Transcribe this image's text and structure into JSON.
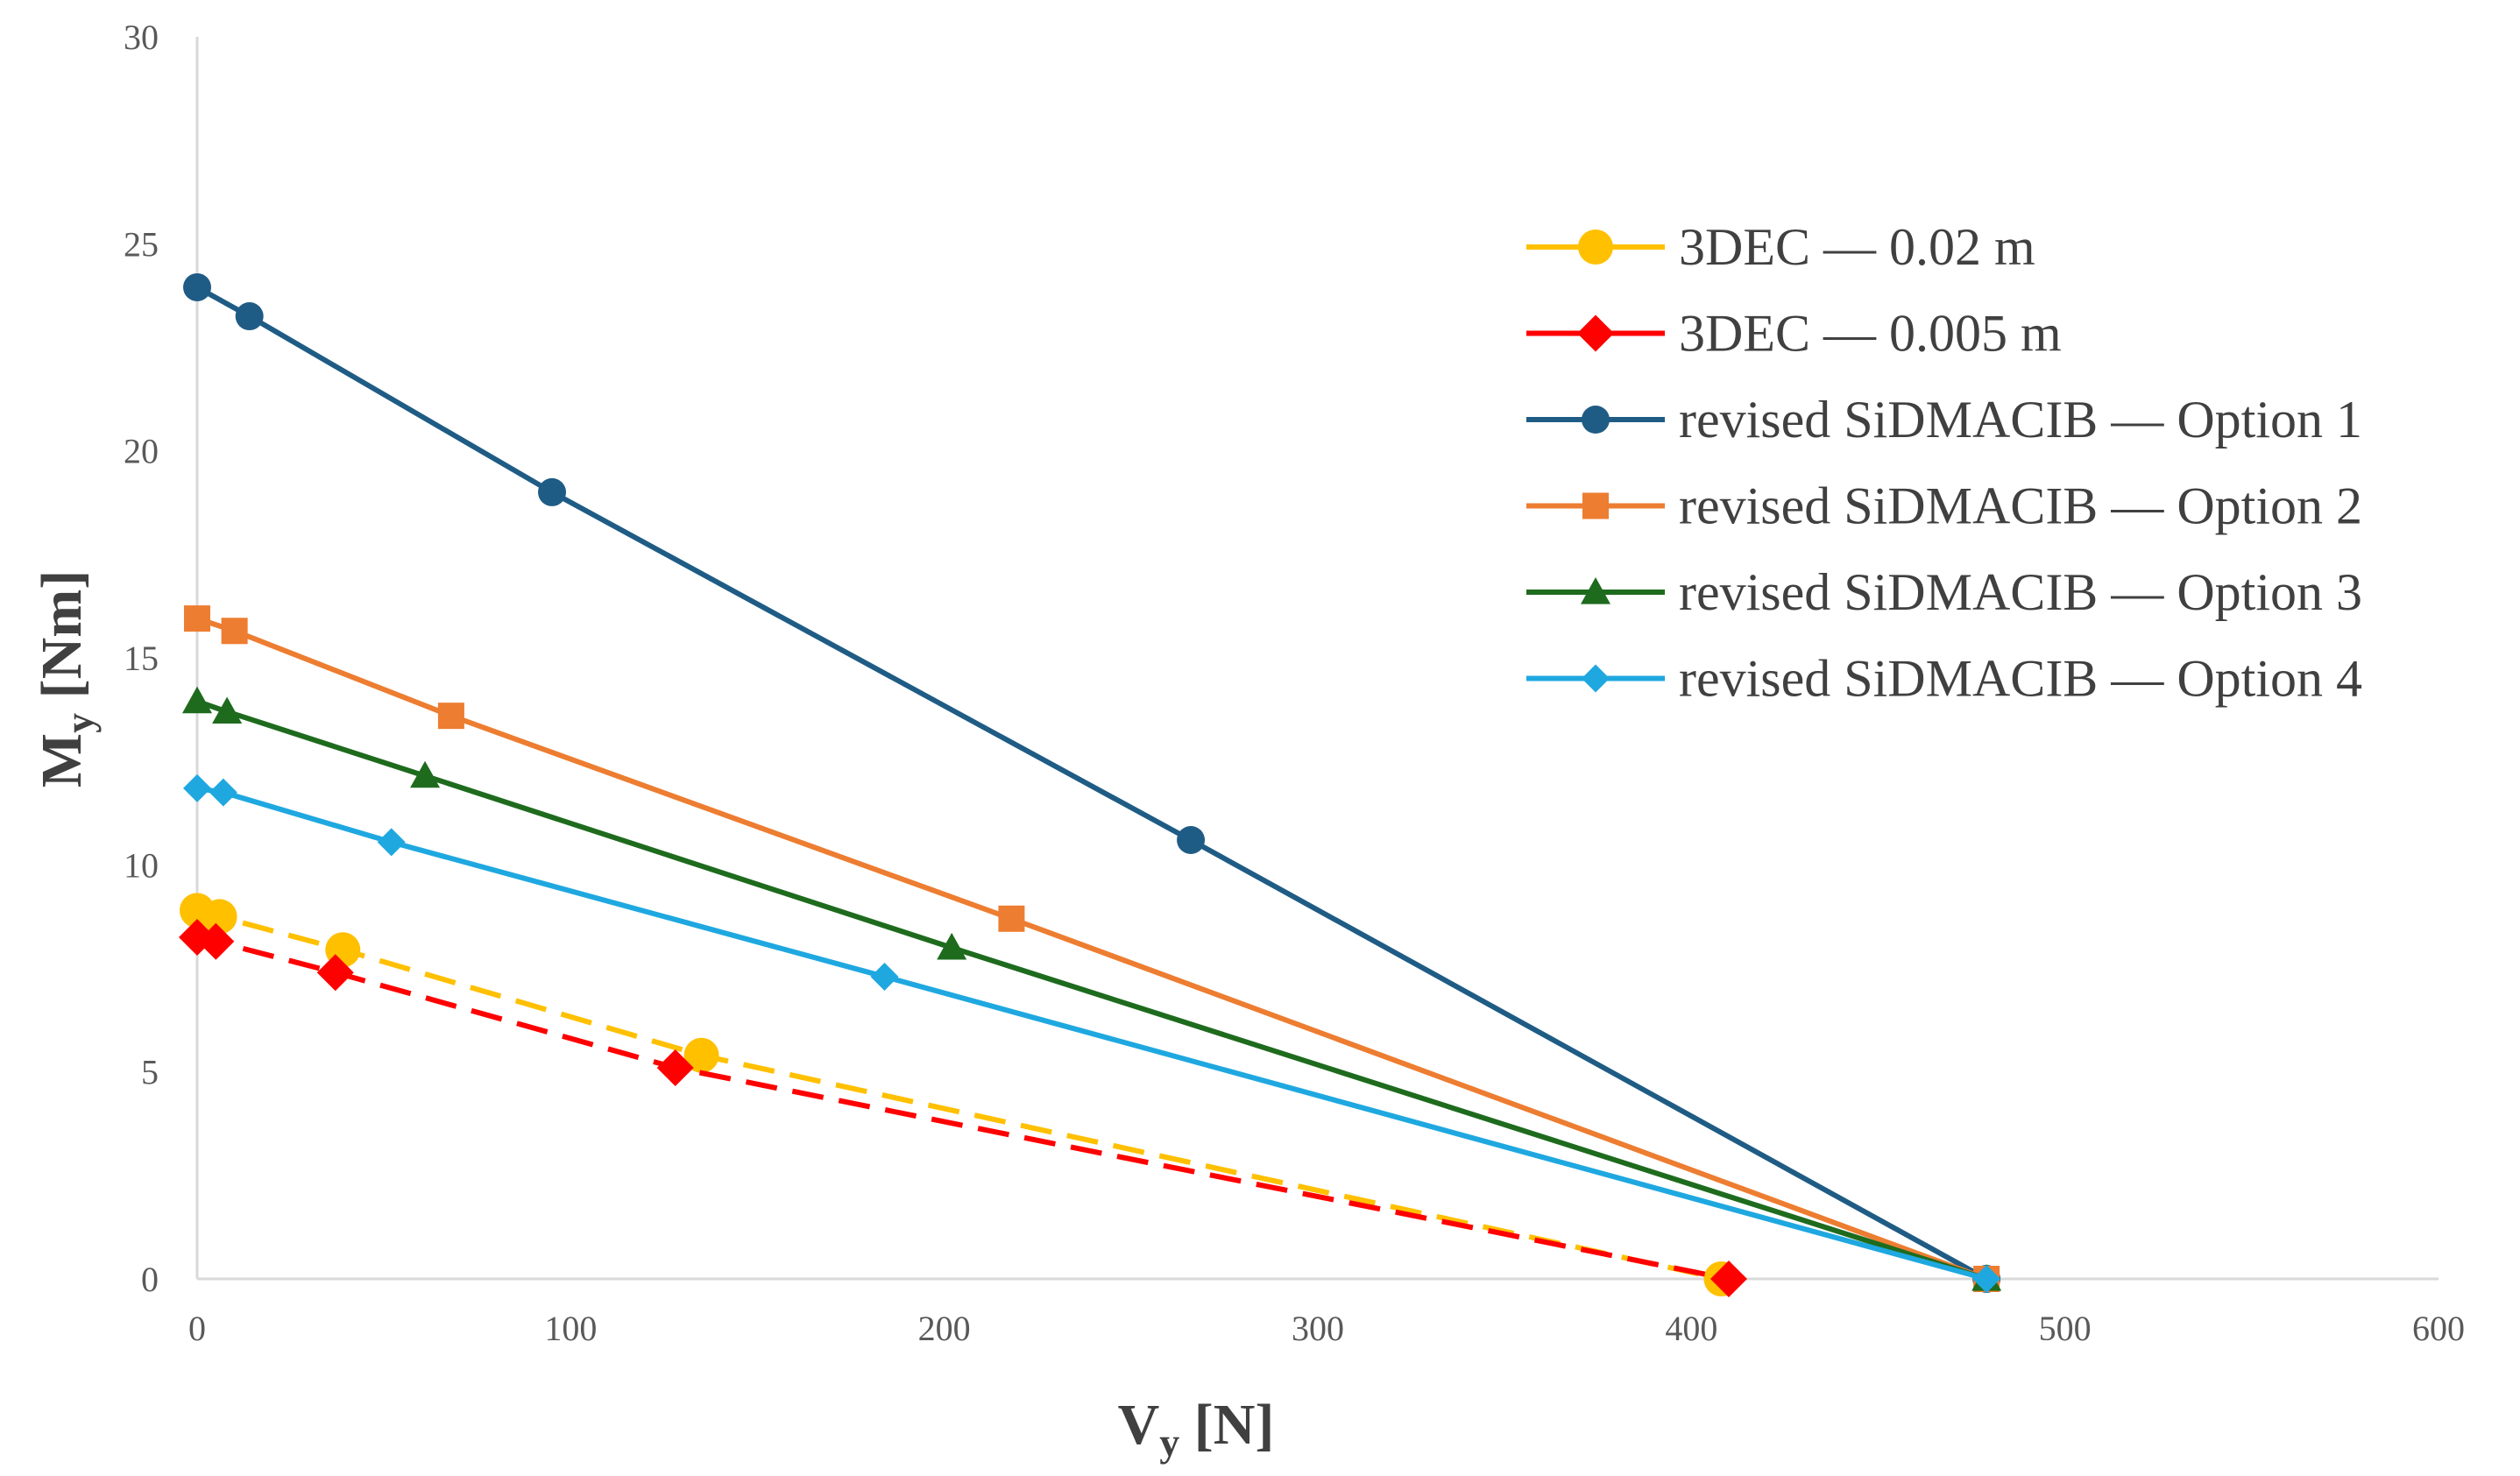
{
  "chart_data": {
    "type": "line",
    "title": "",
    "xlabel": {
      "main": "V",
      "sub": "y",
      "unit": " [N]"
    },
    "ylabel": {
      "main": "M",
      "sub": "y",
      "unit": " [Nm]"
    },
    "xlim": [
      0,
      600
    ],
    "ylim": [
      0,
      30
    ],
    "xticks": [
      "0",
      "100",
      "200",
      "300",
      "400",
      "500",
      "600"
    ],
    "yticks": [
      "0",
      "5",
      "10",
      "15",
      "20",
      "25",
      "30"
    ],
    "legend_position": "right",
    "series": [
      {
        "name": "3DEC — 0.02 m",
        "color": "#FFC000",
        "marker": "circle",
        "dash": true,
        "x": [
          0,
          6,
          39,
          135,
          408
        ],
        "y": [
          8.9,
          8.75,
          7.95,
          5.4,
          0
        ]
      },
      {
        "name": "3DEC — 0.005 m",
        "color": "#FF0000",
        "marker": "diamond",
        "dash": true,
        "x": [
          0,
          5,
          37,
          128,
          410
        ],
        "y": [
          8.25,
          8.15,
          7.4,
          5.1,
          0
        ]
      },
      {
        "name": "revised SiDMACIB — Option 1",
        "color": "#1F5C85",
        "marker": "circle",
        "dash": false,
        "x": [
          0,
          14,
          95,
          266,
          479
        ],
        "y": [
          23.95,
          23.25,
          19.0,
          10.6,
          0
        ]
      },
      {
        "name": "revised SiDMACIB — Option 2",
        "color": "#ED7D31",
        "marker": "square",
        "dash": false,
        "x": [
          0,
          10,
          68,
          218,
          479
        ],
        "y": [
          15.95,
          15.65,
          13.6,
          8.7,
          0
        ]
      },
      {
        "name": "revised SiDMACIB — Option 3",
        "color": "#1E6B1E",
        "marker": "triangle",
        "dash": false,
        "x": [
          0,
          8,
          61,
          202,
          479
        ],
        "y": [
          13.95,
          13.7,
          12.15,
          8.0,
          0
        ]
      },
      {
        "name": "revised SiDMACIB — Option 4",
        "color": "#1FA8E0",
        "marker": "diamond",
        "dash": false,
        "x": [
          0,
          7,
          52,
          184,
          479
        ],
        "y": [
          11.85,
          11.75,
          10.55,
          7.3,
          0
        ]
      }
    ]
  }
}
